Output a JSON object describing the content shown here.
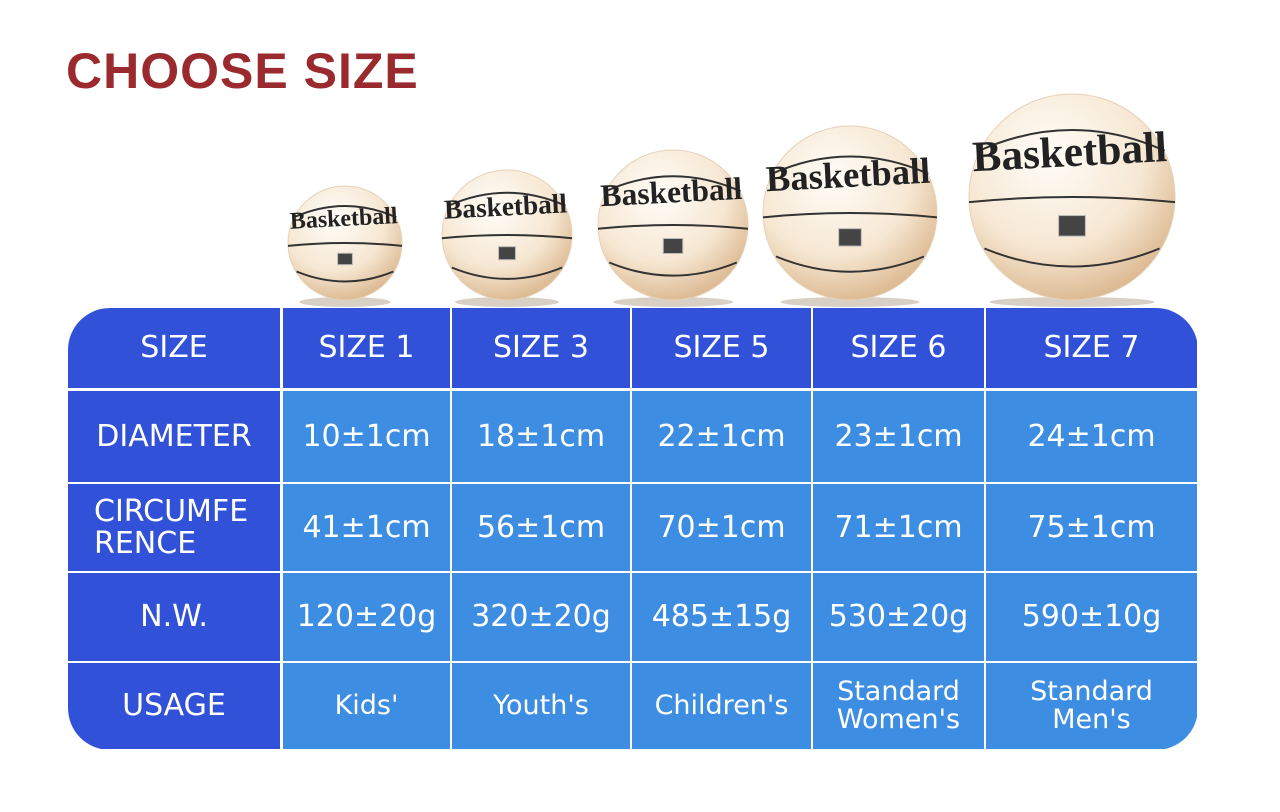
{
  "header": {
    "title": "CHOOSE SIZE"
  },
  "ball_label": "Basketball",
  "table": {
    "header": [
      "SIZE",
      "SIZE 1",
      "SIZE 3",
      "SIZE 5",
      "SIZE 6",
      "SIZE 7"
    ],
    "rows": [
      [
        "DIAMETER",
        "10±1cm",
        "18±1cm",
        "22±1cm",
        "23±1cm",
        "24±1cm"
      ],
      [
        "CIRCUMFE\nRENCE",
        "41±1cm",
        "56±1cm",
        "70±1cm",
        "71±1cm",
        "75±1cm"
      ],
      [
        "N.W.",
        "120±20g",
        "320±20g",
        "485±15g",
        "530±20g",
        "590±10g"
      ],
      [
        "USAGE",
        "Kids'",
        "Youth's",
        "Children's",
        "Standard\nWomen's",
        "Standard\nMen's"
      ]
    ]
  }
}
